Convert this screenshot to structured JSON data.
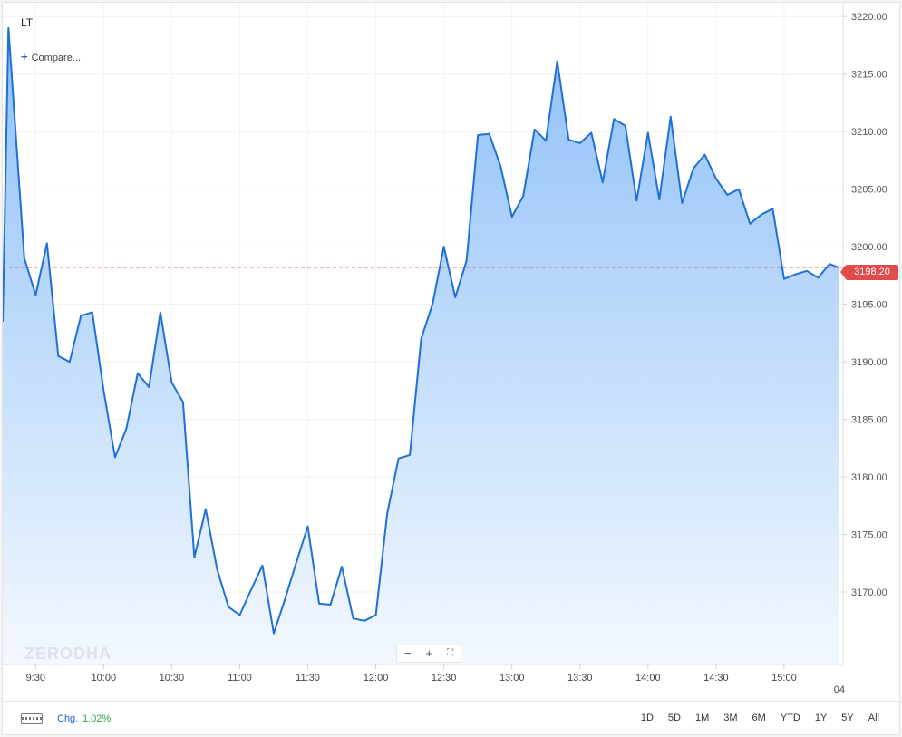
{
  "header": {
    "symbol": "LT",
    "compare_label": "Compare..."
  },
  "watermark": "ZERODHA",
  "last_price_label": "3198.20",
  "footer": {
    "chg_label": "Chg.",
    "chg_value": "1.02%",
    "ranges": [
      "1D",
      "5D",
      "1M",
      "3M",
      "6M",
      "YTD",
      "1Y",
      "5Y",
      "All"
    ]
  },
  "colors": {
    "line": "#1f6fd9",
    "fill_top": "#8ec0f8",
    "fill_bottom": "#f3f8fe",
    "last_price": "#e04b4b",
    "positive": "#2ea44f"
  },
  "icons": {
    "zoom_out": "minus-icon",
    "zoom_in": "plus-icon",
    "fullscreen": "fullscreen-icon",
    "keyboard": "keyboard-icon"
  },
  "chart_data": {
    "type": "area",
    "x_ticks": [
      "9:30",
      "10:00",
      "10:30",
      "11:00",
      "11:30",
      "12:00",
      "12:30",
      "13:00",
      "13:30",
      "14:00",
      "14:30",
      "15:00"
    ],
    "x_ticks_minutes": [
      570,
      600,
      630,
      660,
      690,
      720,
      750,
      780,
      810,
      840,
      870,
      900
    ],
    "x_extra_label": "04",
    "y_ticks": [
      3170,
      3175,
      3180,
      3185,
      3190,
      3195,
      3200,
      3205,
      3210,
      3215,
      3220
    ],
    "y_tick_labels": [
      "3170.00",
      "3175.00",
      "3180.00",
      "3185.00",
      "3190.00",
      "3195.00",
      "3200.00",
      "3205.00",
      "3210.00",
      "3215.00",
      "3220.00"
    ],
    "ylim": [
      3163.7,
      3221.2
    ],
    "xlim": [
      555.5,
      926
    ],
    "last_price": 3198.2,
    "grid": true,
    "series": [
      {
        "x": [
          555.5,
          558,
          565,
          570,
          575,
          580,
          585,
          590,
          595,
          600,
          605,
          610,
          615,
          620,
          625,
          630,
          635,
          640,
          645,
          650,
          655,
          660,
          665,
          670,
          675,
          680,
          685,
          690,
          695,
          700,
          705,
          710,
          715,
          720,
          725,
          730,
          735,
          740,
          745,
          750,
          755,
          760,
          765,
          770,
          775,
          780,
          785,
          790,
          795,
          800,
          805,
          810,
          815,
          820,
          825,
          830,
          835,
          840,
          845,
          850,
          855,
          860,
          865,
          870,
          875,
          880,
          885,
          890,
          895,
          900,
          905,
          910,
          915,
          920,
          924
        ],
        "y": [
          3193.5,
          3219,
          3199,
          3195.8,
          3200.3,
          3190.5,
          3190,
          3194,
          3194.3,
          3187.5,
          3181.7,
          3184.2,
          3189,
          3187.8,
          3194.3,
          3188.2,
          3186.5,
          3173,
          3177.2,
          3172,
          3168.7,
          3168,
          3170.2,
          3172.3,
          3166.4,
          3169.4,
          3172.6,
          3175.7,
          3169,
          3168.9,
          3172.2,
          3167.7,
          3167.5,
          3168,
          3176.8,
          3181.6,
          3181.9,
          3192,
          3195,
          3200,
          3195.6,
          3198.8,
          3209.7,
          3209.8,
          3207,
          3202.6,
          3204.4,
          3210.2,
          3209.2,
          3216.1,
          3209.3,
          3209,
          3209.9,
          3205.6,
          3211.1,
          3210.5,
          3204,
          3209.9,
          3204.1,
          3211.3,
          3203.8,
          3206.8,
          3208,
          3205.9,
          3204.5,
          3205,
          3202,
          3202.8,
          3203.3,
          3197.2,
          3197.6,
          3197.9,
          3197.3,
          3198.5,
          3198.2
        ]
      }
    ]
  }
}
